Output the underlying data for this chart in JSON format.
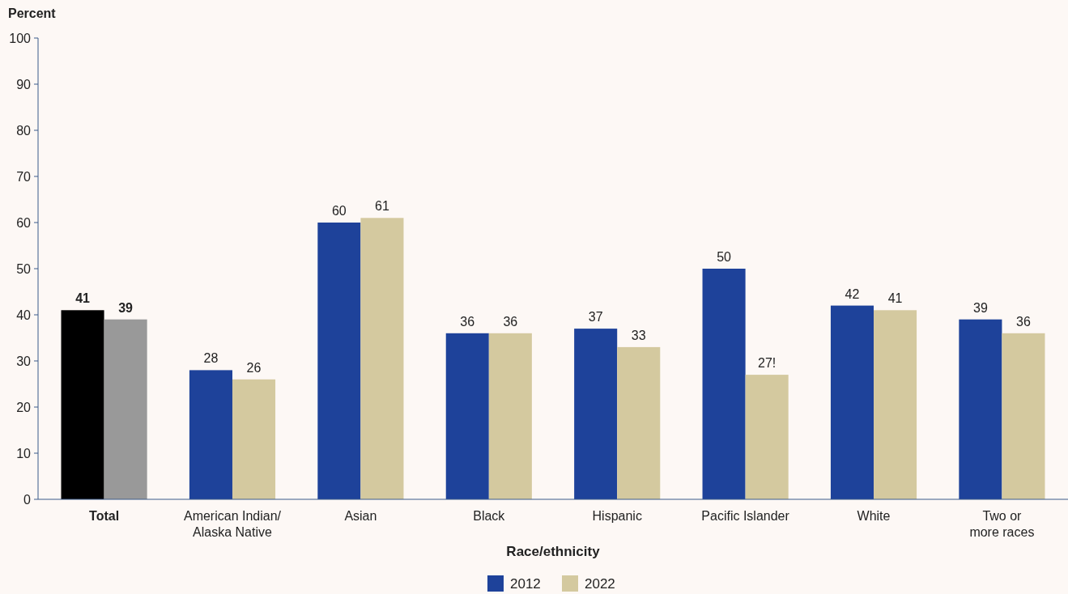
{
  "chart_data": {
    "type": "bar",
    "ylabel": "Percent",
    "xlabel": "Race/ethnicity",
    "categories": [
      "Total",
      "American Indian/\nAlaska Native",
      "Asian",
      "Black",
      "Hispanic",
      "Pacific Islander",
      "White",
      "Two or\nmore races"
    ],
    "series": [
      {
        "name": "2012",
        "color": "#1e429a",
        "colors": [
          "#000000",
          "#1e429a",
          "#1e429a",
          "#1e429a",
          "#1e429a",
          "#1e429a",
          "#1e429a",
          "#1e429a"
        ],
        "values": [
          41,
          28,
          60,
          36,
          37,
          50,
          42,
          39
        ],
        "value_labels": [
          "41",
          "28",
          "60",
          "36",
          "37",
          "50",
          "42",
          "39"
        ]
      },
      {
        "name": "2022",
        "color": "#d4c99f",
        "colors": [
          "#999999",
          "#d4c99f",
          "#d4c99f",
          "#d4c99f",
          "#d4c99f",
          "#d4c99f",
          "#d4c99f",
          "#d4c99f"
        ],
        "values": [
          39,
          26,
          61,
          36,
          33,
          27,
          41,
          36
        ],
        "value_labels": [
          "39",
          "26",
          "61",
          "36",
          "33",
          "27!",
          "41",
          "36"
        ]
      }
    ],
    "ylim": [
      0,
      100
    ],
    "yticks": [
      0,
      10,
      20,
      30,
      40,
      50,
      60,
      70,
      80,
      90,
      100
    ],
    "legend": "bottom"
  }
}
